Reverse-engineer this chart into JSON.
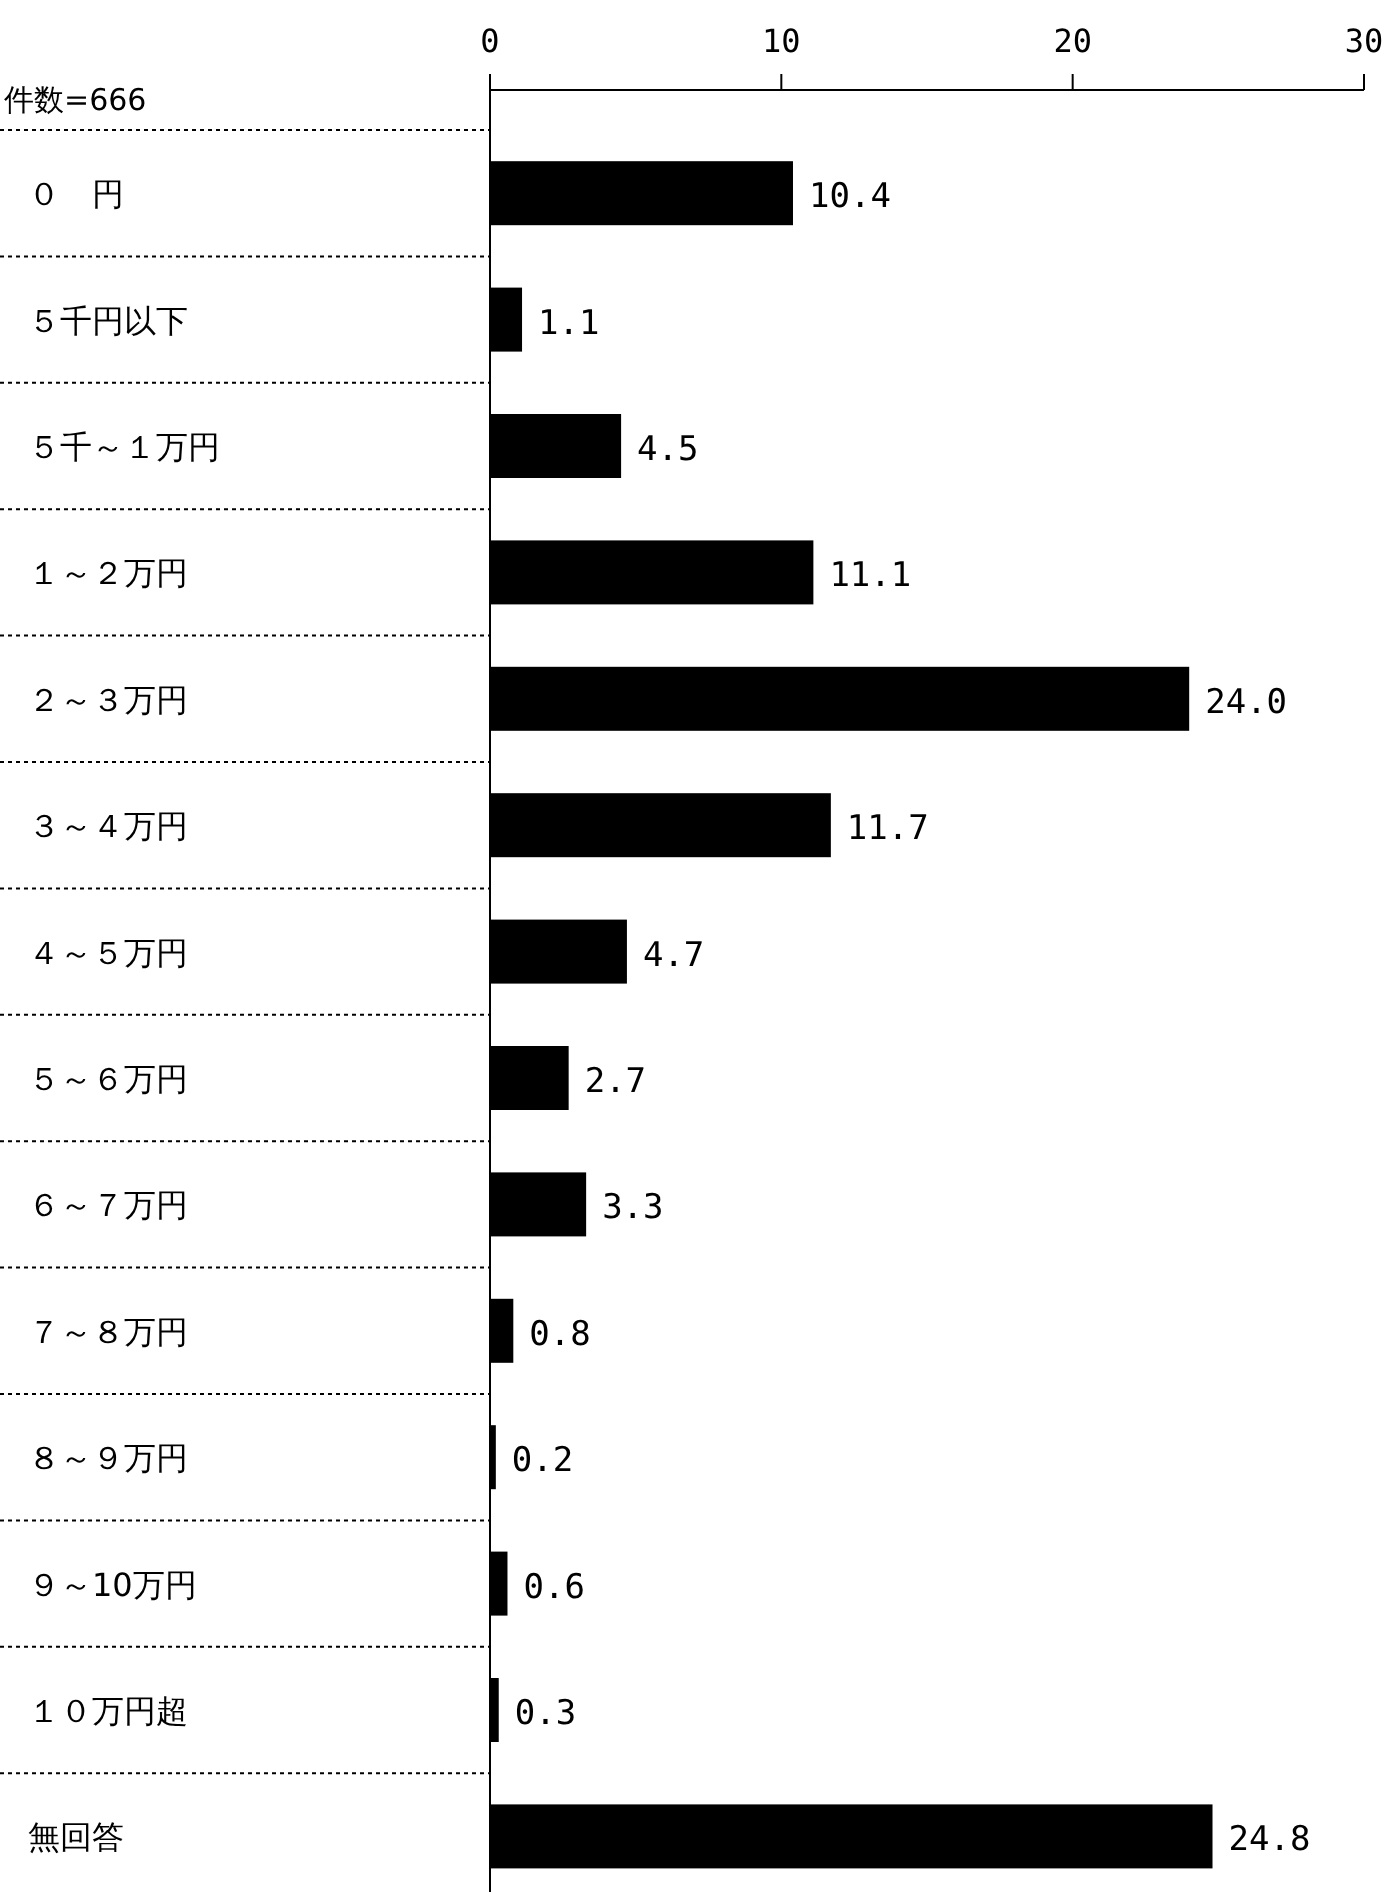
{
  "chart_data": {
    "type": "bar",
    "orientation": "horizontal",
    "subtitle": "件数=666",
    "categories": [
      "０　円",
      "５千円以下",
      "５千～１万円",
      "１～２万円",
      "２～３万円",
      "３～４万円",
      "４～５万円",
      "５～６万円",
      "６～７万円",
      "７～８万円",
      "８～９万円",
      "９～10万円",
      "１０万円超",
      "無回答"
    ],
    "values": [
      10.4,
      1.1,
      4.5,
      11.1,
      24.0,
      11.7,
      4.7,
      2.7,
      3.3,
      0.8,
      0.2,
      0.6,
      0.3,
      24.8
    ],
    "value_labels": [
      "10.4",
      "1.1",
      "4.5",
      "11.1",
      "24.0",
      "11.7",
      "4.7",
      "2.7",
      "3.3",
      "0.8",
      "0.2",
      "0.6",
      "0.3",
      "24.8"
    ],
    "color": "#000000",
    "x2lim": [
      0,
      30
    ],
    "x2ticks": [
      0,
      10,
      20,
      30
    ],
    "grid": false
  }
}
